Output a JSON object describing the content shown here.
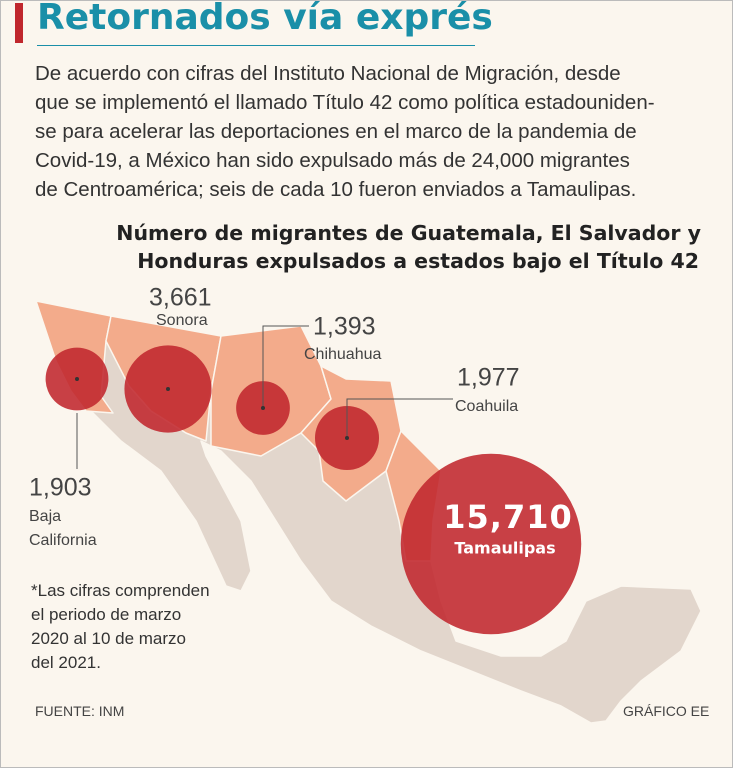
{
  "header": {
    "title": "Retornados vía exprés"
  },
  "intro": {
    "lines": [
      "De acuerdo con cifras del Instituto Nacional de Migración, desde",
      "que se implementó el llamado Título 42 como política estadouniden-",
      "se para acelerar las deportaciones en el marco de la pandemia de",
      "Covid-19, a México han sido expulsado más de 24,000 migrantes",
      "de Centroamérica; seis de cada 10 fueron enviados a Tamaulipas."
    ]
  },
  "map": {
    "title_lines": [
      "Número de migrantes de Guatemala, El Salvador y",
      "Honduras expulsados a estados bajo el Título 42"
    ],
    "states": [
      {
        "name": "Baja California",
        "value": 1903,
        "value_label": "1,903"
      },
      {
        "name": "Sonora",
        "value": 3661,
        "value_label": "3,661"
      },
      {
        "name": "Chihuahua",
        "value": 1393,
        "value_label": "1,393"
      },
      {
        "name": "Coahuila",
        "value": 1977,
        "value_label": "1,977"
      },
      {
        "name": "Tamaulipas",
        "value": 15710,
        "value_label": "15,710"
      }
    ]
  },
  "note": {
    "lines": [
      "*Las cifras comprenden",
      "el periodo de marzo",
      "2020 al 10 de marzo",
      "del 2021."
    ]
  },
  "footer": {
    "source": "FUENTE: INM",
    "credit": "GRÁFICO EE"
  }
}
